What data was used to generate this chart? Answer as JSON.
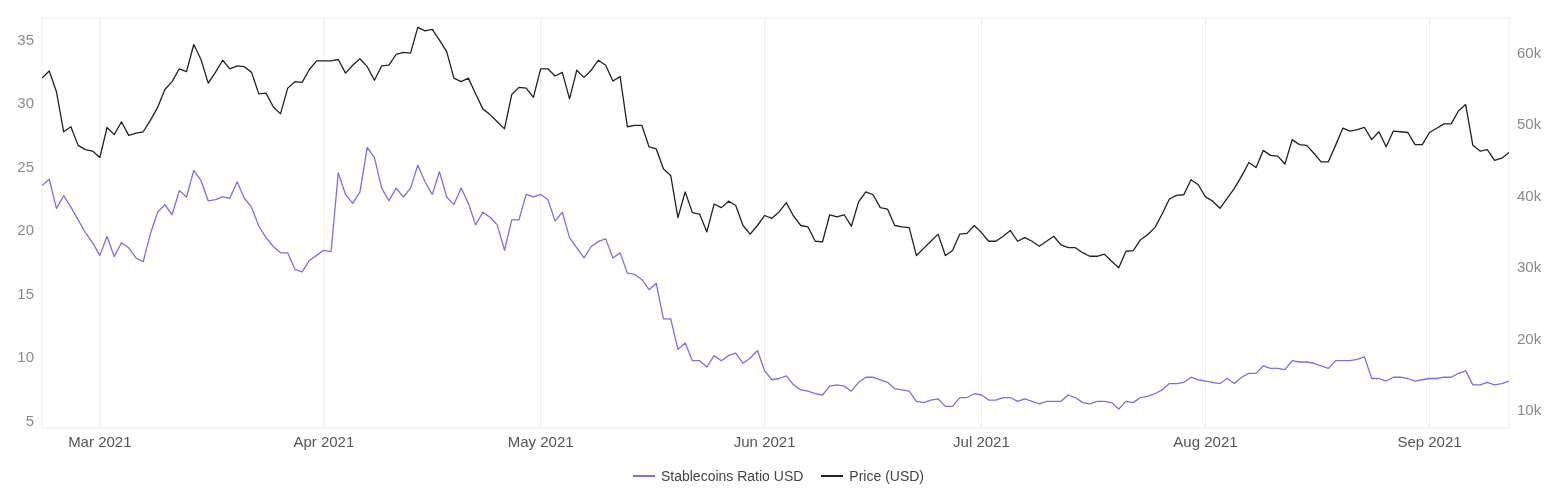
{
  "chart_data": {
    "type": "line",
    "x": [
      "2021-02-21",
      "2021-02-22",
      "2021-02-23",
      "2021-02-24",
      "2021-02-25",
      "2021-02-26",
      "2021-02-27",
      "2021-02-28",
      "2021-03-01",
      "2021-03-02",
      "2021-03-03",
      "2021-03-04",
      "2021-03-05",
      "2021-03-06",
      "2021-03-07",
      "2021-03-08",
      "2021-03-09",
      "2021-03-10",
      "2021-03-11",
      "2021-03-12",
      "2021-03-13",
      "2021-03-14",
      "2021-03-15",
      "2021-03-16",
      "2021-03-17",
      "2021-03-18",
      "2021-03-19",
      "2021-03-20",
      "2021-03-21",
      "2021-03-22",
      "2021-03-23",
      "2021-03-24",
      "2021-03-25",
      "2021-03-26",
      "2021-03-27",
      "2021-03-28",
      "2021-03-29",
      "2021-03-30",
      "2021-03-31",
      "2021-04-01",
      "2021-04-02",
      "2021-04-03",
      "2021-04-04",
      "2021-04-05",
      "2021-04-06",
      "2021-04-07",
      "2021-04-08",
      "2021-04-09",
      "2021-04-10",
      "2021-04-11",
      "2021-04-12",
      "2021-04-13",
      "2021-04-14",
      "2021-04-15",
      "2021-04-16",
      "2021-04-17",
      "2021-04-18",
      "2021-04-19",
      "2021-04-20",
      "2021-04-21",
      "2021-04-22",
      "2021-04-23",
      "2021-04-24",
      "2021-04-25",
      "2021-04-26",
      "2021-04-27",
      "2021-04-28",
      "2021-04-29",
      "2021-04-30",
      "2021-05-01",
      "2021-05-02",
      "2021-05-03",
      "2021-05-04",
      "2021-05-05",
      "2021-05-06",
      "2021-05-07",
      "2021-05-08",
      "2021-05-09",
      "2021-05-10",
      "2021-05-11",
      "2021-05-12",
      "2021-05-13",
      "2021-05-14",
      "2021-05-15",
      "2021-05-16",
      "2021-05-17",
      "2021-05-18",
      "2021-05-19",
      "2021-05-20",
      "2021-05-21",
      "2021-05-22",
      "2021-05-23",
      "2021-05-24",
      "2021-05-25",
      "2021-05-26",
      "2021-05-27",
      "2021-05-28",
      "2021-05-29",
      "2021-05-30",
      "2021-05-31",
      "2021-06-01",
      "2021-06-02",
      "2021-06-03",
      "2021-06-04",
      "2021-06-05",
      "2021-06-06",
      "2021-06-07",
      "2021-06-08",
      "2021-06-09",
      "2021-06-10",
      "2021-06-11",
      "2021-06-12",
      "2021-06-13",
      "2021-06-14",
      "2021-06-15",
      "2021-06-16",
      "2021-06-17",
      "2021-06-18",
      "2021-06-19",
      "2021-06-20",
      "2021-06-21",
      "2021-06-22",
      "2021-06-23",
      "2021-06-24",
      "2021-06-25",
      "2021-06-26",
      "2021-06-27",
      "2021-06-28",
      "2021-06-29",
      "2021-06-30",
      "2021-07-01",
      "2021-07-02",
      "2021-07-03",
      "2021-07-04",
      "2021-07-05",
      "2021-07-06",
      "2021-07-07",
      "2021-07-08",
      "2021-07-09",
      "2021-07-10",
      "2021-07-11",
      "2021-07-12",
      "2021-07-13",
      "2021-07-14",
      "2021-07-15",
      "2021-07-16",
      "2021-07-17",
      "2021-07-18",
      "2021-07-19",
      "2021-07-20",
      "2021-07-21",
      "2021-07-22",
      "2021-07-23",
      "2021-07-24",
      "2021-07-25",
      "2021-07-26",
      "2021-07-27",
      "2021-07-28",
      "2021-07-29",
      "2021-07-30",
      "2021-07-31",
      "2021-08-01",
      "2021-08-02",
      "2021-08-03",
      "2021-08-04",
      "2021-08-05",
      "2021-08-06",
      "2021-08-07",
      "2021-08-08",
      "2021-08-09",
      "2021-08-10",
      "2021-08-11",
      "2021-08-12",
      "2021-08-13",
      "2021-08-14",
      "2021-08-15",
      "2021-08-16",
      "2021-08-17",
      "2021-08-18",
      "2021-08-19",
      "2021-08-20",
      "2021-08-21",
      "2021-08-22",
      "2021-08-23",
      "2021-08-24",
      "2021-08-25",
      "2021-08-26",
      "2021-08-27",
      "2021-08-28",
      "2021-08-29",
      "2021-08-30",
      "2021-08-31",
      "2021-09-01",
      "2021-09-02",
      "2021-09-03",
      "2021-09-04",
      "2021-09-05",
      "2021-09-06",
      "2021-09-07",
      "2021-09-08",
      "2021-09-09",
      "2021-09-10",
      "2021-09-11",
      "2021-09-12"
    ],
    "series": [
      {
        "name": "Stablecoins Ratio USD",
        "color": "#7b6fe8",
        "values": [
          23.5,
          24.0,
          21.7,
          22.7,
          21.8,
          20.8,
          19.8,
          19.0,
          18.0,
          19.5,
          17.9,
          19.0,
          18.6,
          17.8,
          17.5,
          19.7,
          21.4,
          22.0,
          21.2,
          23.1,
          22.6,
          24.7,
          23.9,
          22.3,
          22.4,
          22.6,
          22.5,
          23.8,
          22.5,
          21.8,
          20.3,
          19.4,
          18.7,
          18.2,
          18.2,
          16.9,
          16.7,
          17.6,
          18.0,
          18.4,
          18.3,
          24.5,
          22.8,
          22.1,
          23.0,
          26.5,
          25.7,
          23.3,
          22.3,
          23.3,
          22.6,
          23.3,
          25.1,
          23.8,
          22.8,
          24.6,
          22.6,
          22.0,
          23.3,
          22.1,
          20.4,
          21.4,
          21.0,
          20.4,
          18.4,
          20.8,
          20.8,
          22.8,
          22.6,
          22.8,
          22.4,
          20.7,
          21.4,
          19.4,
          18.6,
          17.8,
          18.7,
          19.1,
          19.3,
          17.8,
          18.2,
          16.6,
          16.5,
          16.1,
          15.3,
          15.8,
          13.0,
          13.0,
          10.6,
          11.1,
          9.7,
          9.7,
          9.2,
          10.1,
          9.7,
          10.1,
          10.3,
          9.5,
          9.9,
          10.5,
          8.9,
          8.2,
          8.3,
          8.5,
          7.8,
          7.4,
          7.3,
          7.1,
          7.0,
          7.7,
          7.8,
          7.7,
          7.3,
          8.0,
          8.4,
          8.4,
          8.2,
          8.0,
          7.5,
          7.4,
          7.3,
          6.5,
          6.4,
          6.6,
          6.7,
          6.1,
          6.1,
          6.8,
          6.8,
          7.1,
          7.0,
          6.6,
          6.6,
          6.8,
          6.8,
          6.5,
          6.7,
          6.5,
          6.3,
          6.5,
          6.5,
          6.5,
          7.0,
          6.8,
          6.4,
          6.3,
          6.5,
          6.5,
          6.4,
          5.9,
          6.5,
          6.4,
          6.8,
          6.9,
          7.1,
          7.4,
          7.9,
          7.9,
          8.0,
          8.4,
          8.2,
          8.1,
          8.0,
          7.9,
          8.3,
          7.9,
          8.4,
          8.7,
          8.7,
          9.3,
          9.1,
          9.1,
          9.0,
          9.7,
          9.6,
          9.6,
          9.5,
          9.3,
          9.1,
          9.7,
          9.7,
          9.7,
          9.8,
          10.0,
          8.3,
          8.3,
          8.1,
          8.4,
          8.4,
          8.3,
          8.1,
          8.2,
          8.3,
          8.3,
          8.4,
          8.4,
          8.7,
          8.9,
          7.8,
          7.8,
          8.0,
          7.8,
          7.9,
          8.1
        ]
      },
      {
        "name": "Price (USD)",
        "color": "#222222",
        "axis": "y2",
        "values": [
          56400,
          57400,
          54500,
          48900,
          49600,
          47000,
          46400,
          46200,
          45300,
          49500,
          48500,
          50300,
          48400,
          48700,
          48900,
          50500,
          52300,
          54800,
          55900,
          57700,
          57300,
          61100,
          59000,
          55700,
          57200,
          58900,
          57700,
          58100,
          58000,
          57200,
          54200,
          54300,
          52400,
          51400,
          55000,
          55900,
          55800,
          57600,
          58800,
          58800,
          58800,
          59000,
          57100,
          58200,
          59100,
          58000,
          56100,
          58100,
          58200,
          59700,
          60000,
          59900,
          63500,
          63000,
          63200,
          61700,
          60100,
          56400,
          55900,
          56400,
          54200,
          52100,
          51300,
          50300,
          49300,
          54100,
          55100,
          55000,
          53700,
          57700,
          57700,
          56700,
          57200,
          53500,
          57500,
          56500,
          57500,
          58900,
          58200,
          56000,
          56600,
          49600,
          49800,
          49800,
          46800,
          46500,
          43700,
          42800,
          36900,
          40500,
          37600,
          37400,
          34900,
          38800,
          38300,
          39200,
          38600,
          35800,
          34600,
          35800,
          37200,
          36800,
          37700,
          39000,
          37100,
          35800,
          35600,
          33600,
          33500,
          37300,
          37000,
          37300,
          35700,
          39100,
          40500,
          40100,
          38300,
          38100,
          35800,
          35600,
          35500,
          31600,
          32600,
          33600,
          34600,
          31600,
          32300,
          34600,
          34700,
          35800,
          34800,
          33600,
          33600,
          34300,
          35100,
          33600,
          34100,
          33600,
          32900,
          33600,
          34300,
          33100,
          32700,
          32700,
          32000,
          31500,
          31500,
          31800,
          30800,
          29900,
          32200,
          32300,
          33800,
          34500,
          35500,
          37400,
          39500,
          40000,
          40100,
          42200,
          41500,
          39800,
          39200,
          38200,
          39600,
          41000,
          42700,
          44600,
          43900,
          46300,
          45600,
          45500,
          44400,
          47800,
          47100,
          47000,
          45900,
          44700,
          44700,
          47000,
          49400,
          49000,
          49200,
          49500,
          47800,
          48900,
          46800,
          49000,
          48900,
          48800,
          47100,
          47100,
          48800,
          49400,
          50000,
          50000,
          51800,
          52700,
          47000,
          46200,
          46400,
          44900,
          45200,
          46000
        ]
      }
    ],
    "xlim": [
      "2021-02-21",
      "2021-09-12"
    ],
    "xticks": [
      {
        "value": "2021-03-01",
        "label": "Mar 2021"
      },
      {
        "value": "2021-04-01",
        "label": "Apr 2021"
      },
      {
        "value": "2021-05-01",
        "label": "May 2021"
      },
      {
        "value": "2021-06-01",
        "label": "Jun 2021"
      },
      {
        "value": "2021-07-01",
        "label": "Jul 2021"
      },
      {
        "value": "2021-08-01",
        "label": "Aug 2021"
      },
      {
        "value": "2021-09-01",
        "label": "Sep 2021"
      }
    ],
    "ylim": [
      4.4,
      36.7
    ],
    "yticks": [
      5,
      10,
      15,
      20,
      25,
      30,
      35
    ],
    "y2lim": [
      7500,
      64800
    ],
    "y2ticks": [
      {
        "value": 10000,
        "label": "10k"
      },
      {
        "value": 20000,
        "label": "20k"
      },
      {
        "value": 30000,
        "label": "30k"
      },
      {
        "value": 40000,
        "label": "40k"
      },
      {
        "value": 50000,
        "label": "50k"
      },
      {
        "value": 60000,
        "label": "60k"
      }
    ],
    "grid": true,
    "legend": "bottom"
  }
}
